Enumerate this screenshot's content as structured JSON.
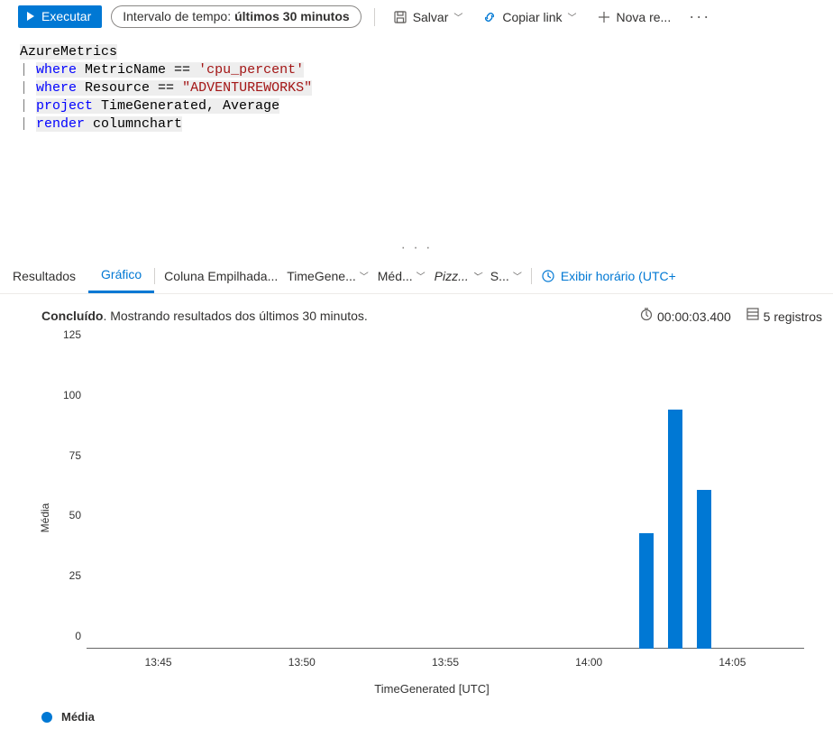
{
  "toolbar": {
    "run_label": "Executar",
    "time_prefix": "Intervalo de tempo:",
    "time_value": "últimos 30 minutos",
    "save_label": "Salvar",
    "copy_link_label": "Copiar link",
    "new_rule_label": "Nova re..."
  },
  "query": {
    "line1_a": "AzureMetrics",
    "line2_kw": "where",
    "line2_rest_a": " MetricName == ",
    "line2_str": "'cpu_percent'",
    "line3_kw": "where",
    "line3_rest_a": " Resource == ",
    "line3_str": "\"ADVENTUREWORKS\"",
    "line4_kw": "project",
    "line4_rest": " TimeGenerated, Average",
    "line5_kw": "render",
    "line5_rest": " columnchart"
  },
  "tabs": {
    "results": "Resultados",
    "chart": "Gráfico"
  },
  "options": {
    "chart_type": "Coluna Empilhada...",
    "xfield": "TimeGene...",
    "yfield": "Méd...",
    "series": "Pizz...",
    "agg": "S...",
    "timezone": "Exibir horário (UTC+"
  },
  "status": {
    "done": "Concluído",
    "message": ". Mostrando resultados dos últimos 30 minutos.",
    "duration": "00:00:03.400",
    "records": "5 registros"
  },
  "chart": {
    "type": "bar",
    "ylabel": "Média",
    "xlabel": "TimeGenerated [UTC]",
    "ymin": 0,
    "ymax": 125,
    "yticks": [
      0,
      25,
      50,
      75,
      100,
      125
    ],
    "xticks": [
      "13:45",
      "13:50",
      "13:55",
      "14:00",
      "14:05"
    ],
    "xdomain_min": 42.5,
    "xdomain_max": 67.5,
    "bar_color": "#0078d4",
    "bars": [
      {
        "x": 62.0,
        "value": 48
      },
      {
        "x": 63.0,
        "value": 99
      },
      {
        "x": 64.0,
        "value": 66
      }
    ],
    "legend_label": "Média",
    "legend_color": "#0078d4"
  }
}
